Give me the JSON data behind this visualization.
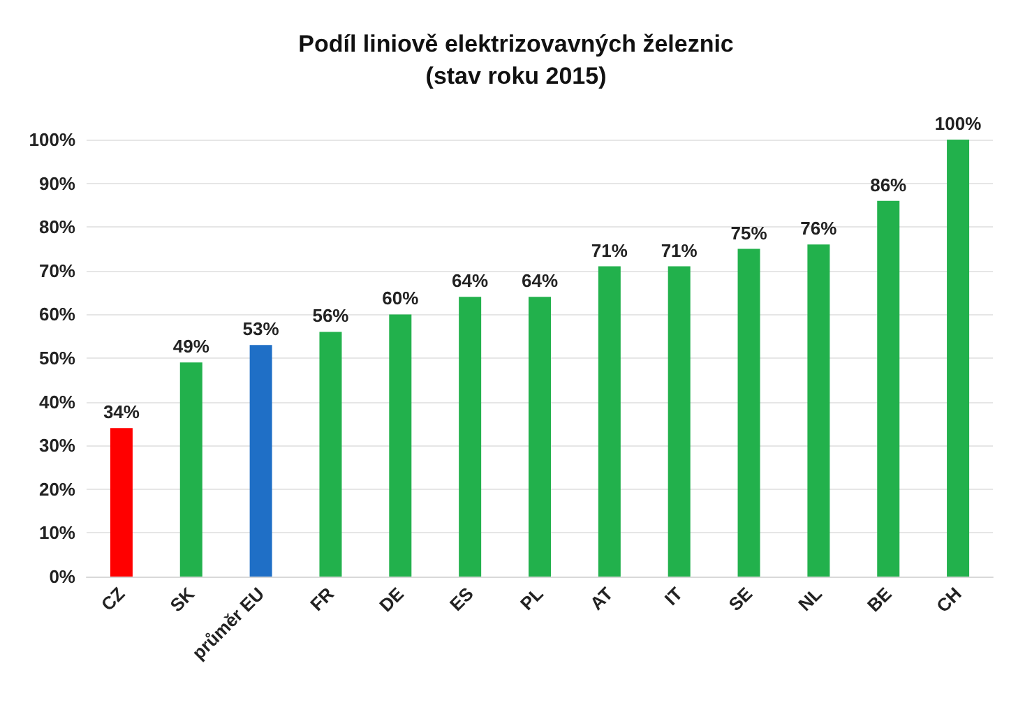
{
  "chart_data": {
    "type": "bar",
    "title": "Podíl liniově elektrizovavných železnic",
    "subtitle": "(stav roku 2015)",
    "categories": [
      "CZ",
      "SK",
      "průměr EU",
      "FR",
      "DE",
      "ES",
      "PL",
      "AT",
      "IT",
      "SE",
      "NL",
      "BE",
      "CH"
    ],
    "values": [
      34,
      49,
      53,
      56,
      60,
      64,
      64,
      71,
      71,
      75,
      76,
      86,
      100
    ],
    "colors": [
      "#ff0000",
      "#22b14c",
      "#1f6fc6",
      "#22b14c",
      "#22b14c",
      "#22b14c",
      "#22b14c",
      "#22b14c",
      "#22b14c",
      "#22b14c",
      "#22b14c",
      "#22b14c",
      "#22b14c"
    ],
    "value_labels": [
      "34%",
      "49%",
      "53%",
      "56%",
      "60%",
      "64%",
      "64%",
      "71%",
      "71%",
      "75%",
      "76%",
      "86%",
      "100%"
    ],
    "ylim": [
      0,
      100
    ],
    "yticks": [
      {
        "value": 0,
        "label": "0%"
      },
      {
        "value": 10,
        "label": "10%"
      },
      {
        "value": 20,
        "label": "20%"
      },
      {
        "value": 30,
        "label": "30%"
      },
      {
        "value": 40,
        "label": "40%"
      },
      {
        "value": 50,
        "label": "50%"
      },
      {
        "value": 60,
        "label": "60%"
      },
      {
        "value": 70,
        "label": "70%"
      },
      {
        "value": 80,
        "label": "80%"
      },
      {
        "value": 90,
        "label": "90%"
      },
      {
        "value": 100,
        "label": "100%"
      }
    ],
    "grid": "y"
  }
}
